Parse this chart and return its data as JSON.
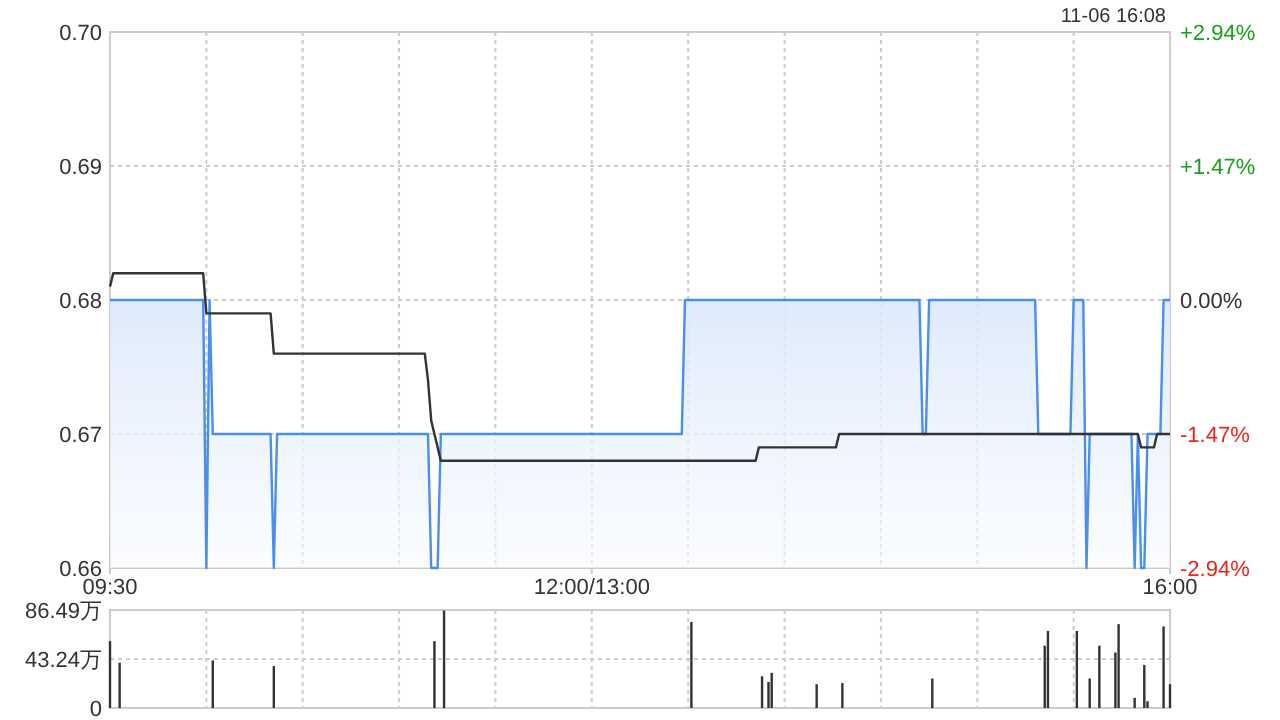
{
  "chart_data": [
    {
      "type": "line",
      "annotations": [
        "11-06 16:08"
      ],
      "categories": [
        "09:30",
        null,
        null,
        null,
        null,
        null,
        null,
        null,
        null,
        null,
        null,
        null,
        null,
        null,
        null,
        null,
        null,
        null,
        null,
        null,
        null,
        null,
        null,
        null,
        null,
        null,
        null,
        null,
        null,
        null,
        null,
        null,
        null,
        null,
        null,
        null,
        null,
        null,
        null,
        null,
        null,
        null,
        null,
        null,
        null,
        null,
        null,
        null,
        null,
        null,
        null,
        null,
        null,
        null,
        null,
        null,
        null,
        null,
        null,
        null,
        null,
        null,
        null,
        null,
        null,
        null,
        null,
        null,
        null,
        null,
        null,
        null,
        null,
        null,
        null,
        null,
        null,
        null,
        null,
        null,
        null,
        null,
        null,
        null,
        null,
        null,
        null,
        null,
        null,
        null,
        null,
        null,
        null,
        null,
        null,
        null,
        null,
        null,
        null,
        null,
        null,
        null,
        null,
        null,
        null,
        null,
        null,
        null,
        null,
        null,
        null,
        null,
        null,
        null,
        null,
        null,
        null,
        null,
        null,
        null,
        null,
        null,
        null,
        null,
        null,
        null,
        null,
        null,
        null,
        null,
        null,
        null,
        null,
        null,
        null,
        null,
        null,
        null,
        null,
        null,
        null,
        null,
        null,
        null,
        null,
        null,
        null,
        null,
        null,
        null,
        "12:00/13:00",
        null,
        null,
        null,
        null,
        null,
        null,
        null,
        null,
        null,
        null,
        null,
        null,
        null,
        null,
        null,
        null,
        null,
        null,
        null,
        null,
        null,
        null,
        null,
        null,
        null,
        null,
        null,
        null,
        null,
        null,
        null,
        null,
        null,
        null,
        null,
        null,
        null,
        null,
        null,
        null,
        null,
        null,
        null,
        null,
        null,
        null,
        null,
        null,
        null,
        null,
        null,
        null,
        null,
        null,
        null,
        null,
        null,
        null,
        null,
        null,
        null,
        null,
        null,
        null,
        null,
        null,
        null,
        null,
        null,
        null,
        null,
        null,
        null,
        null,
        null,
        null,
        null,
        null,
        null,
        null,
        null,
        null,
        null,
        null,
        null,
        null,
        null,
        null,
        null,
        null,
        null,
        null,
        null,
        null,
        null,
        null,
        null,
        null,
        null,
        null,
        null,
        null,
        null,
        null,
        null,
        null,
        null,
        null,
        null,
        null,
        null,
        null,
        null,
        null,
        null,
        null,
        null,
        null,
        null,
        null,
        null,
        null,
        null,
        null,
        null,
        null,
        null,
        null,
        null,
        null,
        null,
        null,
        null,
        null,
        null,
        null,
        null,
        null,
        null,
        null,
        null,
        null,
        null,
        null,
        null,
        null,
        null,
        null,
        null,
        null,
        null,
        null,
        null,
        null,
        null,
        null,
        null,
        null,
        null,
        null,
        null,
        null,
        null,
        null,
        null,
        null,
        null,
        null,
        null,
        null,
        null,
        null,
        null,
        null,
        null,
        null,
        null,
        null,
        null,
        "16:00"
      ],
      "series": [
        {
          "type": "area",
          "color": "#4a8ef0",
          "values": [
            0.68,
            0.68,
            0.68,
            0.68,
            0.68,
            0.68,
            0.68,
            0.68,
            0.68,
            0.68,
            0.68,
            0.68,
            0.68,
            0.68,
            0.68,
            0.68,
            0.68,
            0.68,
            0.68,
            0.68,
            0.68,
            0.68,
            0.68,
            0.68,
            0.68,
            0.68,
            0.68,
            0.68,
            0.68,
            0.68,
            0.66,
            0.68,
            0.67,
            0.67,
            0.67,
            0.67,
            0.67,
            0.67,
            0.67,
            0.67,
            0.67,
            0.67,
            0.67,
            0.67,
            0.67,
            0.67,
            0.67,
            0.67,
            0.67,
            0.67,
            0.67,
            0.66,
            0.67,
            0.67,
            0.67,
            0.67,
            0.67,
            0.67,
            0.67,
            0.67,
            0.67,
            0.67,
            0.67,
            0.67,
            0.67,
            0.67,
            0.67,
            0.67,
            0.67,
            0.67,
            0.67,
            0.67,
            0.67,
            0.67,
            0.67,
            0.67,
            0.67,
            0.67,
            0.67,
            0.67,
            0.67,
            0.67,
            0.67,
            0.67,
            0.67,
            0.67,
            0.67,
            0.67,
            0.67,
            0.67,
            0.67,
            0.67,
            0.67,
            0.67,
            0.67,
            0.67,
            0.67,
            0.67,
            0.67,
            0.67,
            0.66,
            0.66,
            0.66,
            0.67,
            0.67,
            0.67,
            0.67,
            0.67,
            0.67,
            0.67,
            0.67,
            0.67,
            0.67,
            0.67,
            0.67,
            0.67,
            0.67,
            0.67,
            0.67,
            0.67,
            0.67,
            0.67,
            0.67,
            0.67,
            0.67,
            0.67,
            0.67,
            0.67,
            0.67,
            0.67,
            0.67,
            0.67,
            0.67,
            0.67,
            0.67,
            0.67,
            0.67,
            0.67,
            0.67,
            0.67,
            0.67,
            0.67,
            0.67,
            0.67,
            0.67,
            0.67,
            0.67,
            0.67,
            0.67,
            0.67,
            0.67,
            0.67,
            0.67,
            0.67,
            0.67,
            0.67,
            0.67,
            0.67,
            0.67,
            0.67,
            0.67,
            0.67,
            0.67,
            0.67,
            0.67,
            0.67,
            0.67,
            0.67,
            0.67,
            0.67,
            0.67,
            0.67,
            0.67,
            0.67,
            0.67,
            0.67,
            0.67,
            0.67,
            0.67,
            0.68,
            0.68,
            0.68,
            0.68,
            0.68,
            0.68,
            0.68,
            0.68,
            0.68,
            0.68,
            0.68,
            0.68,
            0.68,
            0.68,
            0.68,
            0.68,
            0.68,
            0.68,
            0.68,
            0.68,
            0.68,
            0.68,
            0.68,
            0.68,
            0.68,
            0.68,
            0.68,
            0.68,
            0.68,
            0.68,
            0.68,
            0.68,
            0.68,
            0.68,
            0.68,
            0.68,
            0.68,
            0.68,
            0.68,
            0.68,
            0.68,
            0.68,
            0.68,
            0.68,
            0.68,
            0.68,
            0.68,
            0.68,
            0.68,
            0.68,
            0.68,
            0.68,
            0.68,
            0.68,
            0.68,
            0.68,
            0.68,
            0.68,
            0.68,
            0.68,
            0.68,
            0.68,
            0.68,
            0.68,
            0.68,
            0.68,
            0.68,
            0.68,
            0.68,
            0.68,
            0.68,
            0.68,
            0.68,
            0.68,
            0.67,
            0.67,
            0.68,
            0.68,
            0.68,
            0.68,
            0.68,
            0.68,
            0.68,
            0.68,
            0.68,
            0.68,
            0.68,
            0.68,
            0.68,
            0.68,
            0.68,
            0.68,
            0.68,
            0.68,
            0.68,
            0.68,
            0.68,
            0.68,
            0.68,
            0.68,
            0.68,
            0.68,
            0.68,
            0.68,
            0.68,
            0.68,
            0.68,
            0.68,
            0.68,
            0.68,
            0.67,
            0.67,
            0.67,
            0.67,
            0.67,
            0.67,
            0.67,
            0.67,
            0.67,
            0.67,
            0.67,
            0.68,
            0.68,
            0.68,
            0.68,
            0.66,
            0.67,
            0.67,
            0.67,
            0.67,
            0.67,
            0.67,
            0.67,
            0.67,
            0.67,
            0.67,
            0.67,
            0.67,
            0.67,
            0.67,
            0.66,
            0.67,
            0.66,
            0.66,
            0.67,
            0.67,
            0.67,
            0.67,
            0.67,
            0.68,
            0.68,
            0.68
          ]
        },
        {
          "type": "line",
          "color": "#333333",
          "values": [
            0.681,
            0.682,
            0.682,
            0.682,
            0.682,
            0.682,
            0.682,
            0.682,
            0.682,
            0.682,
            0.682,
            0.682,
            0.682,
            0.682,
            0.682,
            0.682,
            0.682,
            0.682,
            0.682,
            0.682,
            0.682,
            0.682,
            0.682,
            0.682,
            0.682,
            0.682,
            0.682,
            0.682,
            0.682,
            0.682,
            0.679,
            0.679,
            0.679,
            0.679,
            0.679,
            0.679,
            0.679,
            0.679,
            0.679,
            0.679,
            0.679,
            0.679,
            0.679,
            0.679,
            0.679,
            0.679,
            0.679,
            0.679,
            0.679,
            0.679,
            0.679,
            0.676,
            0.676,
            0.676,
            0.676,
            0.676,
            0.676,
            0.676,
            0.676,
            0.676,
            0.676,
            0.676,
            0.676,
            0.676,
            0.676,
            0.676,
            0.676,
            0.676,
            0.676,
            0.676,
            0.676,
            0.676,
            0.676,
            0.676,
            0.676,
            0.676,
            0.676,
            0.676,
            0.676,
            0.676,
            0.676,
            0.676,
            0.676,
            0.676,
            0.676,
            0.676,
            0.676,
            0.676,
            0.676,
            0.676,
            0.676,
            0.676,
            0.676,
            0.676,
            0.676,
            0.676,
            0.676,
            0.676,
            0.676,
            0.674,
            0.671,
            0.67,
            0.669,
            0.668,
            0.668,
            0.668,
            0.668,
            0.668,
            0.668,
            0.668,
            0.668,
            0.668,
            0.668,
            0.668,
            0.668,
            0.668,
            0.668,
            0.668,
            0.668,
            0.668,
            0.668,
            0.668,
            0.668,
            0.668,
            0.668,
            0.668,
            0.668,
            0.668,
            0.668,
            0.668,
            0.668,
            0.668,
            0.668,
            0.668,
            0.668,
            0.668,
            0.668,
            0.668,
            0.668,
            0.668,
            0.668,
            0.668,
            0.668,
            0.668,
            0.668,
            0.668,
            0.668,
            0.668,
            0.668,
            0.668,
            0.668,
            0.668,
            0.668,
            0.668,
            0.668,
            0.668,
            0.668,
            0.668,
            0.668,
            0.668,
            0.668,
            0.668,
            0.668,
            0.668,
            0.668,
            0.668,
            0.668,
            0.668,
            0.668,
            0.668,
            0.668,
            0.668,
            0.668,
            0.668,
            0.668,
            0.668,
            0.668,
            0.668,
            0.668,
            0.668,
            0.668,
            0.668,
            0.668,
            0.668,
            0.668,
            0.668,
            0.668,
            0.668,
            0.668,
            0.668,
            0.668,
            0.668,
            0.668,
            0.668,
            0.668,
            0.668,
            0.668,
            0.668,
            0.668,
            0.668,
            0.668,
            0.668,
            0.669,
            0.669,
            0.669,
            0.669,
            0.669,
            0.669,
            0.669,
            0.669,
            0.669,
            0.669,
            0.669,
            0.669,
            0.669,
            0.669,
            0.669,
            0.669,
            0.669,
            0.669,
            0.669,
            0.669,
            0.669,
            0.669,
            0.669,
            0.669,
            0.669,
            0.67,
            0.67,
            0.67,
            0.67,
            0.67,
            0.67,
            0.67,
            0.67,
            0.67,
            0.67,
            0.67,
            0.67,
            0.67,
            0.67,
            0.67,
            0.67,
            0.67,
            0.67,
            0.67,
            0.67,
            0.67,
            0.67,
            0.67,
            0.67,
            0.67,
            0.67,
            0.67,
            0.67,
            0.67,
            0.67,
            0.67,
            0.67,
            0.67,
            0.67,
            0.67,
            0.67,
            0.67,
            0.67,
            0.67,
            0.67,
            0.67,
            0.67,
            0.67,
            0.67,
            0.67,
            0.67,
            0.67,
            0.67,
            0.67,
            0.67,
            0.67,
            0.67,
            0.67,
            0.67,
            0.67,
            0.67,
            0.67,
            0.67,
            0.67,
            0.67,
            0.67,
            0.67,
            0.67,
            0.67,
            0.67,
            0.67,
            0.67,
            0.67,
            0.67,
            0.67,
            0.67,
            0.67,
            0.67,
            0.67,
            0.67,
            0.67,
            0.67,
            0.67,
            0.67,
            0.67,
            0.67,
            0.67,
            0.67,
            0.67,
            0.67,
            0.67,
            0.67,
            0.67,
            0.67,
            0.67,
            0.67,
            0.67,
            0.67,
            0.67,
            0.669,
            0.669,
            0.669,
            0.669,
            0.669,
            0.67,
            0.67,
            0.67,
            0.67,
            0.67
          ]
        }
      ],
      "ylim": [
        0.66,
        0.7
      ],
      "yticks": [
        {
          "value": 0.66,
          "label": "0.66"
        },
        {
          "value": 0.67,
          "label": "0.67"
        },
        {
          "value": 0.68,
          "label": "0.68"
        },
        {
          "value": 0.69,
          "label": "0.69"
        },
        {
          "value": 0.7,
          "label": "0.70"
        }
      ],
      "y2lim": [
        -2.94,
        2.94
      ],
      "y2ticks": [
        {
          "value": -2.94,
          "label": "-2.94%"
        },
        {
          "value": -1.47,
          "label": "-1.47%"
        },
        {
          "value": 0,
          "label": "0.00%"
        },
        {
          "value": 1.47,
          "label": "+1.47%"
        },
        {
          "value": 2.94,
          "label": "+2.94%"
        }
      ],
      "grid": true
    },
    {
      "type": "bar",
      "color": "#333333",
      "categories": [
        null,
        null,
        null,
        null,
        null,
        null,
        null,
        null,
        null,
        null,
        null,
        null,
        null,
        null,
        null,
        null,
        null,
        null,
        null,
        null,
        null,
        null,
        null,
        null,
        null,
        null,
        null,
        null,
        null,
        null,
        null,
        null,
        null,
        null,
        null,
        null,
        null,
        null,
        null,
        null,
        null,
        null,
        null,
        null,
        null,
        null,
        null,
        null,
        null,
        null,
        null,
        null,
        null,
        null,
        null,
        null,
        null,
        null,
        null,
        null,
        null,
        null,
        null,
        null,
        null,
        null,
        null,
        null,
        null,
        null,
        null,
        null,
        null,
        null,
        null,
        null,
        null,
        null,
        null,
        null,
        null,
        null,
        null,
        null,
        null,
        null,
        null,
        null,
        null,
        null,
        null,
        null,
        null,
        null,
        null,
        null,
        null,
        null,
        null,
        null,
        null,
        null,
        null,
        null,
        null,
        null,
        null,
        null,
        null,
        null,
        null,
        null,
        null,
        null,
        null,
        null,
        null,
        null,
        null,
        null,
        null,
        null,
        null,
        null,
        null,
        null,
        null,
        null,
        null,
        null,
        null,
        null,
        null,
        null,
        null,
        null,
        null,
        null,
        null,
        null,
        null,
        null,
        null,
        null,
        null,
        null,
        null,
        null,
        null,
        null,
        null,
        null,
        null,
        null,
        null,
        null,
        null,
        null,
        null,
        null,
        null,
        null,
        null,
        null,
        null,
        null,
        null,
        null,
        null,
        null,
        null,
        null,
        null,
        null,
        null,
        null,
        null,
        null,
        null,
        null,
        null,
        null,
        null,
        null,
        null,
        null,
        null,
        null,
        null,
        null,
        null,
        null,
        null,
        null,
        null,
        null,
        null,
        null,
        null,
        null,
        null,
        null,
        null,
        null,
        null,
        null,
        null,
        null,
        null,
        null,
        null,
        null,
        null,
        null,
        null,
        null,
        null,
        null,
        null,
        null,
        null,
        null,
        null,
        null,
        null,
        null,
        null,
        null,
        null,
        null,
        null,
        null,
        null,
        null,
        null,
        null,
        null,
        null,
        null,
        null,
        null,
        null,
        null,
        null,
        null,
        null,
        null,
        null,
        null,
        null,
        null,
        null,
        null,
        null,
        null,
        null,
        null,
        null,
        null,
        null,
        null,
        null,
        null,
        null,
        null,
        null,
        null,
        null,
        null,
        null,
        null,
        null,
        null,
        null,
        null,
        null,
        null,
        null,
        null,
        null,
        null,
        null,
        null,
        null,
        null,
        null,
        null,
        null,
        null,
        null,
        null,
        null,
        null,
        null,
        null,
        null,
        null,
        null,
        null,
        null,
        null,
        null,
        null,
        null,
        null,
        null,
        null,
        null,
        null,
        null,
        null,
        null,
        null,
        null,
        null,
        null,
        null,
        null,
        null,
        null,
        null,
        null,
        null,
        null,
        null,
        null,
        null,
        null,
        null,
        null,
        null
      ],
      "values": [
        59,
        0,
        0,
        40,
        0,
        0,
        0,
        0,
        0,
        0,
        0,
        0,
        0,
        0,
        0,
        0,
        0,
        0,
        0,
        0,
        0,
        0,
        0,
        0,
        0,
        0,
        0,
        0,
        0,
        0,
        0,
        0,
        42,
        0,
        0,
        0,
        0,
        0,
        0,
        0,
        0,
        0,
        0,
        0,
        0,
        0,
        0,
        0,
        0,
        0,
        0,
        37,
        0,
        0,
        0,
        0,
        0,
        0,
        0,
        0,
        0,
        0,
        0,
        0,
        0,
        0,
        0,
        0,
        0,
        0,
        0,
        0,
        0,
        0,
        0,
        0,
        0,
        0,
        0,
        0,
        0,
        0,
        0,
        0,
        0,
        0,
        0,
        0,
        0,
        0,
        0,
        0,
        0,
        0,
        0,
        0,
        0,
        0,
        0,
        0,
        0,
        59,
        0,
        0,
        86,
        0,
        0,
        0,
        0,
        0,
        0,
        0,
        0,
        0,
        0,
        0,
        0,
        0,
        0,
        0,
        0,
        0,
        0,
        0,
        0,
        0,
        0,
        0,
        0,
        0,
        0,
        0,
        0,
        0,
        0,
        0,
        0,
        0,
        0,
        0,
        0,
        0,
        0,
        0,
        0,
        0,
        0,
        0,
        0,
        0,
        0,
        0,
        0,
        0,
        0,
        0,
        0,
        0,
        0,
        0,
        0,
        0,
        0,
        0,
        0,
        0,
        0,
        0,
        0,
        0,
        0,
        0,
        0,
        0,
        0,
        0,
        0,
        0,
        0,
        0,
        0,
        76,
        0,
        0,
        0,
        0,
        0,
        0,
        0,
        0,
        0,
        0,
        0,
        0,
        0,
        0,
        0,
        0,
        0,
        0,
        0,
        0,
        0,
        28,
        0,
        23,
        31,
        0,
        0,
        0,
        0,
        0,
        0,
        0,
        0,
        0,
        0,
        0,
        0,
        0,
        21,
        0,
        0,
        0,
        0,
        0,
        0,
        0,
        22,
        0,
        0,
        0,
        0,
        0,
        0,
        0,
        0,
        0,
        0,
        0,
        0,
        0,
        0,
        0,
        0,
        0,
        0,
        0,
        0,
        0,
        0,
        0,
        0,
        0,
        0,
        0,
        26,
        0,
        0,
        0,
        0,
        0,
        0,
        0,
        0,
        0,
        0,
        0,
        0,
        0,
        0,
        0,
        0,
        0,
        0,
        0,
        0,
        0,
        0,
        0,
        0,
        0,
        0,
        0,
        0,
        0,
        0,
        0,
        0,
        0,
        0,
        55,
        68,
        0,
        0,
        0,
        0,
        0,
        0,
        0,
        0,
        68,
        0,
        0,
        0,
        26,
        0,
        0,
        55,
        0,
        0,
        0,
        0,
        49,
        74,
        0,
        0,
        0,
        0,
        9,
        0,
        0,
        38,
        6,
        0,
        0,
        0,
        0,
        72,
        0,
        21
      ],
      "ylim": [
        0,
        86.49
      ],
      "yticks": [
        {
          "value": 0,
          "label": "0"
        },
        {
          "value": 43.24,
          "label": "43.24万"
        },
        {
          "value": 86.49,
          "label": "86.49万"
        }
      ],
      "grid": true
    }
  ]
}
